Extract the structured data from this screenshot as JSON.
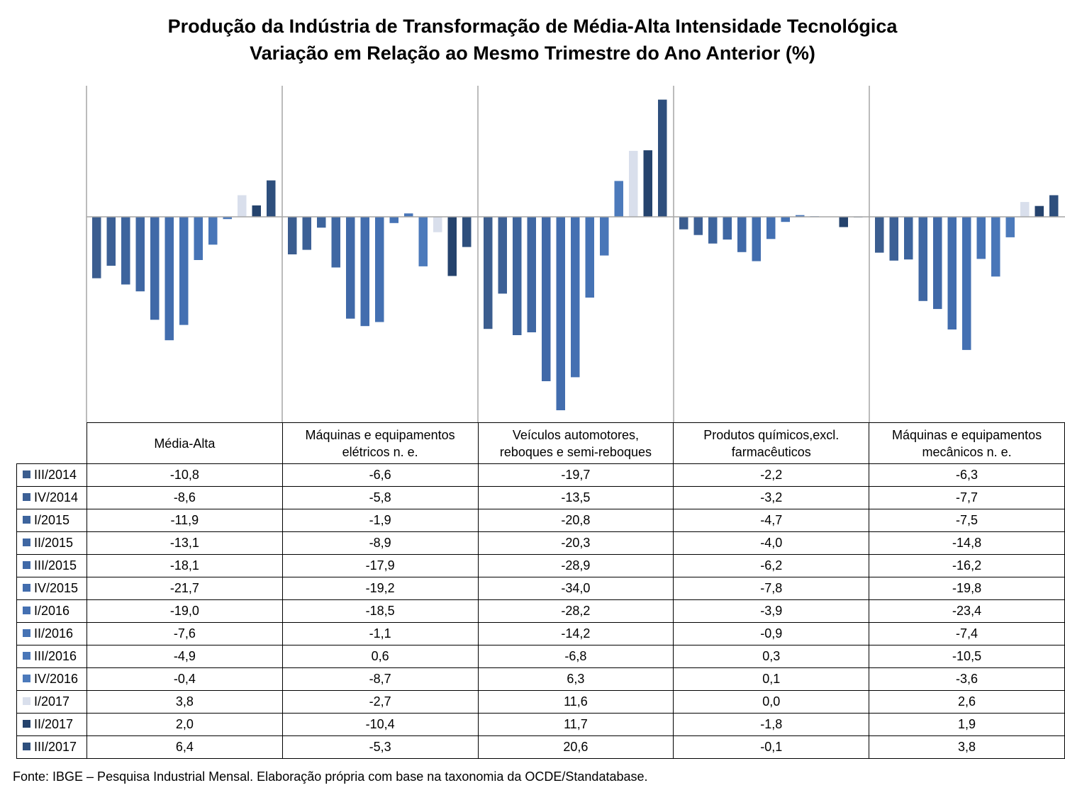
{
  "title_line1": "Produção da Indústria de Transformação de Média-Alta Intensidade Tecnológica",
  "title_line2": "Variação em Relação ao Mesmo Trimestre do Ano Anterior (%)",
  "source": "Fonte: IBGE – Pesquisa Industrial Mensal. Elaboração própria com base na taxonomia da OCDE/Standatabase.",
  "chart_data": {
    "type": "bar",
    "title": "Produção da Indústria de Transformação de Média-Alta Intensidade Tecnológica — Variação em Relação ao Mesmo Trimestre do Ano Anterior (%)",
    "ylim": [
      -34.0,
      20.6
    ],
    "grid": "vertical separators between categories, zero line",
    "legend": "table rows with colour swatches below chart",
    "categories": [
      {
        "line1": "Média-Alta",
        "line2": ""
      },
      {
        "line1": "Máquinas e equipamentos",
        "line2": "elétricos n. e."
      },
      {
        "line1": "Veículos automotores,",
        "line2": "reboques e semi-reboques"
      },
      {
        "line1": "Produtos químicos,excl.",
        "line2": "farmacêuticos"
      },
      {
        "line1": "Máquinas e equipamentos",
        "line2": "mecânicos  n. e."
      }
    ],
    "series": [
      {
        "name": "III/2014",
        "color": "#3b5d8f",
        "values": [
          -10.8,
          -6.6,
          -19.7,
          -2.2,
          -6.3
        ],
        "labels": [
          "-10,8",
          "-6,6",
          "-19,7",
          "-2,2",
          "-6,3"
        ]
      },
      {
        "name": "IV/2014",
        "color": "#3c6096",
        "values": [
          -8.6,
          -5.8,
          -13.5,
          -3.2,
          -7.7
        ],
        "labels": [
          "-8,6",
          "-5,8",
          "-13,5",
          "-3,2",
          "-7,7"
        ]
      },
      {
        "name": "I/2015",
        "color": "#3d649d",
        "values": [
          -11.9,
          -1.9,
          -20.8,
          -4.7,
          -7.5
        ],
        "labels": [
          "-11,9",
          "-1,9",
          "-20,8",
          "-4,7",
          "-7,5"
        ]
      },
      {
        "name": "II/2015",
        "color": "#3f67a3",
        "values": [
          -13.1,
          -8.9,
          -20.3,
          -4.0,
          -14.8
        ],
        "labels": [
          "-13,1",
          "-8,9",
          "-20,3",
          "-4,0",
          "-14,8"
        ]
      },
      {
        "name": "III/2015",
        "color": "#4069a8",
        "values": [
          -18.1,
          -17.9,
          -28.9,
          -6.2,
          -16.2
        ],
        "labels": [
          "-18,1",
          "-17,9",
          "-28,9",
          "-6,2",
          "-16,2"
        ]
      },
      {
        "name": "IV/2015",
        "color": "#426dae",
        "values": [
          -21.7,
          -19.2,
          -34.0,
          -7.8,
          -19.8
        ],
        "labels": [
          "-21,7",
          "-19,2",
          "-34,0",
          "-7,8",
          "-19,8"
        ]
      },
      {
        "name": "I/2016",
        "color": "#4470b2",
        "values": [
          -19.0,
          -18.5,
          -28.2,
          -3.9,
          -23.4
        ],
        "labels": [
          "-19,0",
          "-18,5",
          "-28,2",
          "-3,9",
          "-23,4"
        ]
      },
      {
        "name": "II/2016",
        "color": "#4673b5",
        "values": [
          -7.6,
          -1.1,
          -14.2,
          -0.9,
          -7.4
        ],
        "labels": [
          "-7,6",
          "-1,1",
          "-14,2",
          "-0,9",
          "-7,4"
        ]
      },
      {
        "name": "III/2016",
        "color": "#4976b8",
        "values": [
          -4.9,
          0.6,
          -6.8,
          0.3,
          -10.5
        ],
        "labels": [
          "-4,9",
          "0,6",
          "-6,8",
          "0,3",
          "-10,5"
        ]
      },
      {
        "name": "IV/2016",
        "color": "#4c7abb",
        "values": [
          -0.4,
          -8.7,
          6.3,
          0.1,
          -3.6
        ],
        "labels": [
          "-0,4",
          "-8,7",
          "6,3",
          "0,1",
          "-3,6"
        ]
      },
      {
        "name": "I/2017",
        "color": "#d9dfec",
        "values": [
          3.8,
          -2.7,
          11.6,
          0.0,
          2.6
        ],
        "labels": [
          "3,8",
          "-2,7",
          "11,6",
          "0,0",
          "2,6"
        ]
      },
      {
        "name": "II/2017",
        "color": "#25436d",
        "values": [
          2.0,
          -10.4,
          11.7,
          -1.8,
          1.9
        ],
        "labels": [
          "2,0",
          "-10,4",
          "11,7",
          "-1,8",
          "1,9"
        ]
      },
      {
        "name": "III/2017",
        "color": "#2e4f7d",
        "values": [
          6.4,
          -5.3,
          20.6,
          -0.1,
          3.8
        ],
        "labels": [
          "6,4",
          "-5,3",
          "20,6",
          "-0,1",
          "3,8"
        ]
      }
    ]
  }
}
